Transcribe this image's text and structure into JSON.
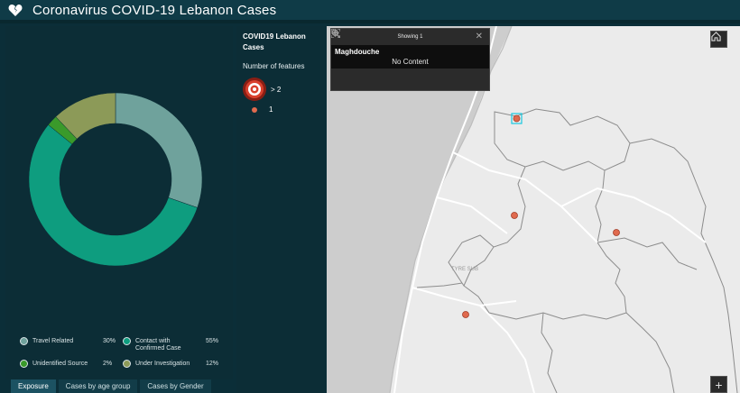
{
  "app": {
    "title": "Coronavirus COVID-19 Lebanon Cases",
    "logo_icon": "broken-heart-icon"
  },
  "colors": {
    "travel": "#6fa29c",
    "contact": "#0e9d7f",
    "unidentified": "#3a9a2a",
    "investigation": "#8c9a58",
    "marker": "#e06a4e"
  },
  "chart_data": {
    "type": "pie",
    "donut": true,
    "categories": [
      "Travel Related",
      "Contact with Confirmed Case",
      "Unidentified Source",
      "Under Investigation"
    ],
    "values": [
      30,
      55,
      2,
      12
    ],
    "value_labels": [
      "30%",
      "55%",
      "2%",
      "12%"
    ],
    "start_angle_deg": 0
  },
  "legend": {
    "travel": {
      "label": "Travel Related",
      "pct": "30%"
    },
    "contact": {
      "label": "Contact with Confirmed Case",
      "pct": "55%"
    },
    "unidentified": {
      "label": "Unidentified Source",
      "pct": "2%"
    },
    "investigation": {
      "label": "Under Investigation",
      "pct": "12%"
    }
  },
  "tabs": [
    "Exposure",
    "Cases by age group",
    "Cases by Gender"
  ],
  "map_legend": {
    "layer_title": "COVID19 Lebanon Cases",
    "subtitle": "Number of features",
    "large_label": "> 2",
    "small_label": "1"
  },
  "popup": {
    "header": "Showing 1",
    "name": "Maghdouche",
    "content": "No Content",
    "close_icon": "close-icon",
    "actions": [
      "move-icon",
      "zoom-to-icon",
      "full-extent-icon"
    ]
  },
  "map": {
    "road_label": "TYRE SUB",
    "home_icon": "home-icon",
    "zoom_in_label": "+"
  }
}
